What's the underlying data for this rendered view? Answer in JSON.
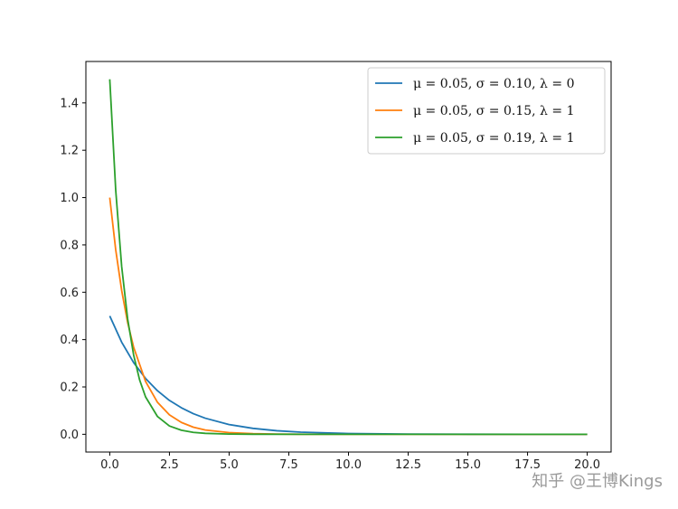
{
  "chart_data": {
    "type": "line",
    "title": "",
    "xlabel": "",
    "ylabel": "",
    "xlim": [
      -1.0,
      21.0
    ],
    "ylim": [
      -0.075,
      1.575
    ],
    "x_ticks": [
      "0.0",
      "2.5",
      "5.0",
      "7.5",
      "10.0",
      "12.5",
      "15.0",
      "17.5",
      "20.0"
    ],
    "y_ticks": [
      "0.0",
      "0.2",
      "0.4",
      "0.6",
      "0.8",
      "1.0",
      "1.2",
      "1.4"
    ],
    "grid": false,
    "legend_position": "top-right",
    "series": [
      {
        "name": "μ = 0.05,  σ = 0.10,  λ = 0",
        "color": "#1f77b4",
        "x": [
          0,
          0.5,
          1,
          1.5,
          2,
          2.5,
          3,
          3.5,
          4,
          5,
          6,
          7,
          8,
          10,
          12.5,
          15,
          17.5,
          20
        ],
        "y": [
          0.5,
          0.389,
          0.303,
          0.236,
          0.184,
          0.143,
          0.112,
          0.087,
          0.068,
          0.041,
          0.025,
          0.015,
          0.009,
          0.0034,
          0.001,
          0.0003,
          0.0001,
          0.0
        ]
      },
      {
        "name": "μ = 0.05,  σ = 0.15,  λ = 1",
        "color": "#ff7f0e",
        "x": [
          0,
          0.25,
          0.5,
          0.75,
          1,
          1.5,
          2,
          2.5,
          3,
          3.5,
          4,
          5,
          6,
          7,
          8,
          10,
          12.5,
          15,
          17.5,
          20
        ],
        "y": [
          1.0,
          0.779,
          0.607,
          0.472,
          0.368,
          0.223,
          0.135,
          0.082,
          0.05,
          0.03,
          0.018,
          0.007,
          0.0025,
          0.0009,
          0.0003,
          0.0,
          0.0,
          0.0,
          0.0,
          0.0
        ]
      },
      {
        "name": "μ = 0.05,  σ = 0.19,  λ = 1",
        "color": "#2ca02c",
        "x": [
          0,
          0.25,
          0.5,
          0.75,
          1,
          1.25,
          1.5,
          2,
          2.5,
          3,
          3.5,
          4,
          5,
          6,
          8,
          10,
          12.5,
          15,
          17.5,
          20
        ],
        "y": [
          1.5,
          1.031,
          0.708,
          0.487,
          0.335,
          0.23,
          0.158,
          0.075,
          0.035,
          0.017,
          0.008,
          0.004,
          0.0008,
          0.0002,
          0.0,
          0.0,
          0.0,
          0.0,
          0.0,
          0.0
        ]
      }
    ]
  },
  "watermark": "知乎 @王博Kings"
}
